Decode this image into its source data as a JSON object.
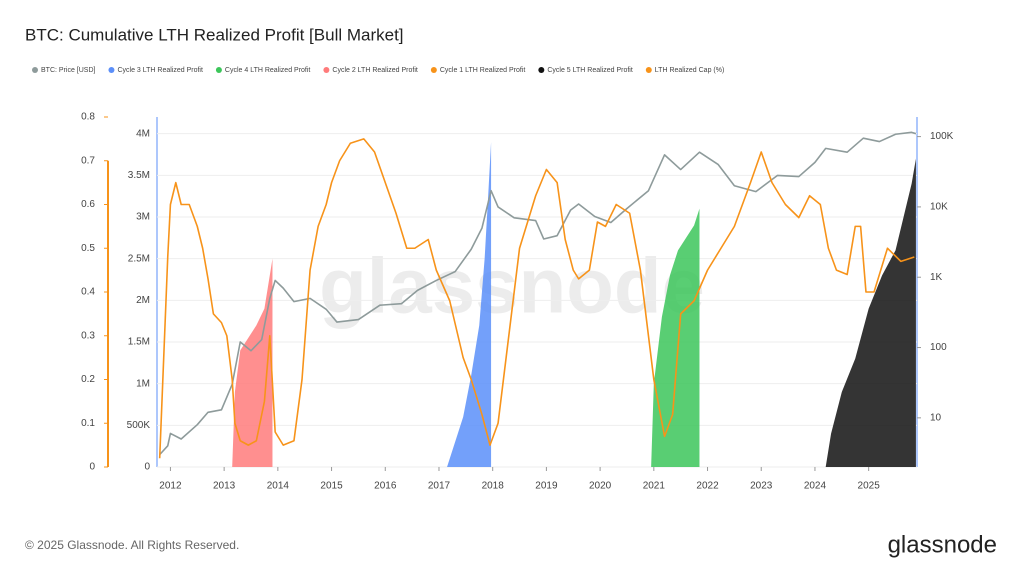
{
  "chart_data": {
    "type": "combo",
    "title": "BTC: Cumulative LTH Realized Profit [Bull Market]",
    "watermark": "glassnode",
    "footer": "© 2025 Glassnode. All Rights Reserved.",
    "logo": "glassnode",
    "xlim": [
      2011.75,
      2025.9
    ],
    "xticks": [
      2012,
      2013,
      2014,
      2015,
      2016,
      2017,
      2018,
      2019,
      2020,
      2021,
      2022,
      2023,
      2024,
      2025
    ],
    "ylim": [
      0,
      4200000
    ],
    "yticks": [
      0,
      {
        "value": 500000,
        "label": "500K"
      },
      {
        "value": 1000000,
        "label": "1M"
      },
      {
        "value": 1500000,
        "label": "1.5M"
      },
      {
        "value": 2000000,
        "label": "2M"
      },
      {
        "value": 2500000,
        "label": "2.5M"
      },
      {
        "value": 3000000,
        "label": "3M"
      },
      {
        "value": 3500000,
        "label": "3.5M"
      },
      {
        "value": 4000000,
        "label": "4M"
      }
    ],
    "y2lim": [
      2,
      190000
    ],
    "y2log": true,
    "y2ticks": [
      10,
      100,
      {
        "value": 1000,
        "label": "1K"
      },
      {
        "value": 10000,
        "label": "10K"
      },
      {
        "value": 100000,
        "label": "100K"
      }
    ],
    "y3lim": [
      0,
      0.8
    ],
    "y3ticks": [
      0,
      0.1,
      0.2,
      0.3,
      0.4,
      0.5,
      0.6,
      0.7,
      0.8
    ],
    "y3color": "#f7931a",
    "grid": true,
    "series": [
      {
        "name": "BTC: Price [USD]",
        "type": "line",
        "axis": "y2",
        "color": "#8e9b9b",
        "x": [
          2011.8,
          2011.95,
          2012.0,
          2012.2,
          2012.5,
          2012.7,
          2012.95,
          2013.15,
          2013.3,
          2013.5,
          2013.7,
          2013.85,
          2013.95,
          2014.1,
          2014.3,
          2014.6,
          2014.9,
          2015.1,
          2015.5,
          2015.9,
          2016.3,
          2016.6,
          2016.95,
          2017.3,
          2017.6,
          2017.8,
          2017.97,
          2018.1,
          2018.4,
          2018.8,
          2018.95,
          2019.2,
          2019.45,
          2019.6,
          2019.9,
          2020.2,
          2020.5,
          2020.9,
          2021.2,
          2021.5,
          2021.85,
          2022.2,
          2022.5,
          2022.9,
          2023.3,
          2023.7,
          2024.0,
          2024.2,
          2024.6,
          2024.9,
          2025.2,
          2025.5,
          2025.8,
          2025.88
        ],
        "values": [
          3,
          4,
          6,
          5,
          8,
          12,
          13,
          30,
          120,
          90,
          130,
          500,
          900,
          700,
          450,
          500,
          350,
          230,
          250,
          400,
          420,
          650,
          900,
          1200,
          2500,
          5000,
          17000,
          10000,
          7000,
          6400,
          3500,
          3900,
          9000,
          11000,
          7300,
          6000,
          9500,
          17000,
          55000,
          34000,
          60000,
          40000,
          20000,
          16500,
          28000,
          27000,
          43000,
          68000,
          60000,
          95000,
          85000,
          108000,
          115000,
          110000
        ]
      },
      {
        "name": "Cycle 3 LTH Realized Profit",
        "type": "area",
        "color": "#5b8ff9",
        "x": [
          2017.15,
          2017.3,
          2017.45,
          2017.6,
          2017.75,
          2017.85,
          2017.92,
          2017.97
        ],
        "values": [
          0,
          300000,
          600000,
          1100000,
          1700000,
          2500000,
          3300000,
          3900000
        ]
      },
      {
        "name": "Cycle 4 LTH Realized Profit",
        "type": "area",
        "color": "#3cc65a",
        "x": [
          2020.95,
          2021.0,
          2021.15,
          2021.3,
          2021.45,
          2021.6,
          2021.75,
          2021.85
        ],
        "values": [
          0,
          1000000,
          1800000,
          2300000,
          2600000,
          2750000,
          2900000,
          3100000
        ]
      },
      {
        "name": "Cycle 2 LTH Realized Profit",
        "type": "area",
        "color": "#ff7b7b",
        "x": [
          2013.15,
          2013.2,
          2013.3,
          2013.45,
          2013.6,
          2013.75,
          2013.85,
          2013.9
        ],
        "values": [
          0,
          900000,
          1400000,
          1550000,
          1700000,
          1900000,
          2300000,
          2500000
        ]
      },
      {
        "name": "Cycle 1 LTH Realized Profit",
        "type": "area",
        "color": "#f7931a",
        "x": [],
        "values": []
      },
      {
        "name": "Cycle 5 LTH Realized Profit",
        "type": "area",
        "color": "#111111",
        "x": [
          2024.2,
          2024.3,
          2024.5,
          2024.75,
          2025.0,
          2025.25,
          2025.5,
          2025.65,
          2025.8,
          2025.88
        ],
        "values": [
          0,
          400000,
          900000,
          1300000,
          1900000,
          2300000,
          2600000,
          3000000,
          3400000,
          3700000
        ]
      },
      {
        "name": "LTH Realized Cap (%)",
        "type": "line",
        "axis": "y3",
        "color": "#f7931a",
        "x": [
          2011.8,
          2011.95,
          2012.0,
          2012.1,
          2012.2,
          2012.35,
          2012.5,
          2012.6,
          2012.7,
          2012.8,
          2012.95,
          2013.05,
          2013.15,
          2013.2,
          2013.3,
          2013.45,
          2013.6,
          2013.75,
          2013.85,
          2013.95,
          2014.1,
          2014.3,
          2014.45,
          2014.6,
          2014.75,
          2014.9,
          2015.0,
          2015.15,
          2015.35,
          2015.6,
          2015.8,
          2016.0,
          2016.2,
          2016.4,
          2016.55,
          2016.8,
          2016.95,
          2017.2,
          2017.45,
          2017.6,
          2017.8,
          2017.95,
          2018.1,
          2018.3,
          2018.5,
          2018.8,
          2019.0,
          2019.2,
          2019.35,
          2019.5,
          2019.6,
          2019.8,
          2019.95,
          2020.1,
          2020.3,
          2020.55,
          2020.75,
          2021.0,
          2021.2,
          2021.35,
          2021.5,
          2021.75,
          2022.0,
          2022.25,
          2022.5,
          2022.8,
          2023.0,
          2023.2,
          2023.45,
          2023.7,
          2023.9,
          2024.1,
          2024.25,
          2024.4,
          2024.6,
          2024.75,
          2024.85,
          2024.95,
          2025.1,
          2025.35,
          2025.6,
          2025.85
        ],
        "values": [
          0.02,
          0.48,
          0.6,
          0.65,
          0.6,
          0.6,
          0.55,
          0.5,
          0.43,
          0.35,
          0.33,
          0.3,
          0.2,
          0.1,
          0.06,
          0.05,
          0.06,
          0.15,
          0.3,
          0.08,
          0.05,
          0.06,
          0.2,
          0.45,
          0.55,
          0.6,
          0.65,
          0.7,
          0.74,
          0.75,
          0.72,
          0.65,
          0.58,
          0.5,
          0.5,
          0.52,
          0.45,
          0.38,
          0.25,
          0.2,
          0.12,
          0.05,
          0.1,
          0.3,
          0.5,
          0.62,
          0.68,
          0.65,
          0.52,
          0.45,
          0.43,
          0.45,
          0.56,
          0.55,
          0.6,
          0.58,
          0.45,
          0.2,
          0.07,
          0.12,
          0.35,
          0.38,
          0.45,
          0.5,
          0.55,
          0.65,
          0.72,
          0.65,
          0.6,
          0.57,
          0.62,
          0.6,
          0.5,
          0.45,
          0.44,
          0.55,
          0.55,
          0.4,
          0.4,
          0.5,
          0.47,
          0.48
        ]
      }
    ]
  }
}
